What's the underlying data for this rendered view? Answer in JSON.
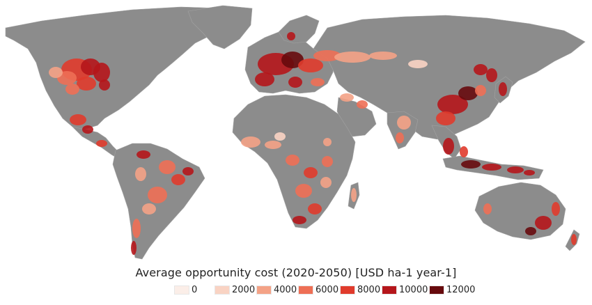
{
  "legend": {
    "title": "Average opportunity cost (2020-2050) [USD ha-1 year-1]",
    "items": [
      {
        "label": "0",
        "color": "#fbeee8"
      },
      {
        "label": "2000",
        "color": "#f9d3c3"
      },
      {
        "label": "4000",
        "color": "#f4a286"
      },
      {
        "label": "6000",
        "color": "#ee6f55"
      },
      {
        "label": "8000",
        "color": "#e03b2c"
      },
      {
        "label": "10000",
        "color": "#b5161b"
      },
      {
        "label": "12000",
        "color": "#670a0d"
      }
    ]
  },
  "colors": {
    "land_no_data": "#8c8c8c",
    "background": "#ffffff"
  }
}
